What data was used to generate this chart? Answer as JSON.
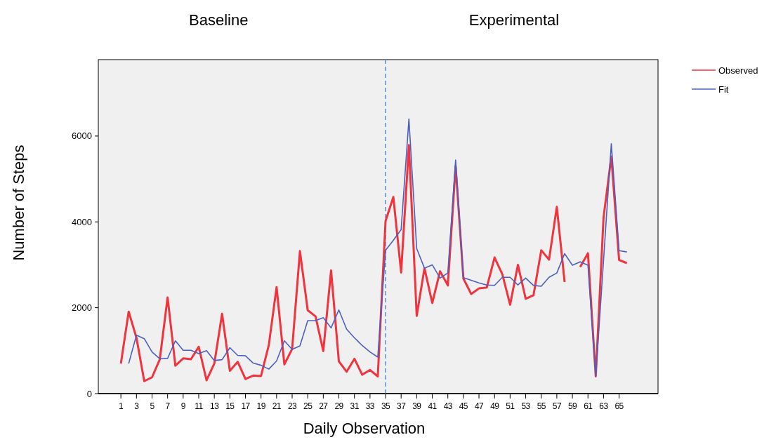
{
  "chart_data": {
    "type": "line",
    "xlabel": "Daily Observation",
    "ylabel": "Number of Steps",
    "annotations": [
      "Baseline",
      "Experimental"
    ],
    "xlim": [
      -1.9,
      70
    ],
    "xticks": [
      1,
      3,
      5,
      7,
      9,
      11,
      13,
      15,
      17,
      19,
      21,
      23,
      25,
      27,
      29,
      31,
      33,
      35,
      37,
      39,
      41,
      43,
      45,
      47,
      49,
      51,
      53,
      55,
      57,
      59,
      61,
      63,
      65
    ],
    "ylim": [
      0,
      7780
    ],
    "yticks": [
      0,
      2000,
      4000,
      6000
    ],
    "ref_lines": [
      {
        "axis": "x",
        "value": 35,
        "color": "#4a7fc1",
        "line_style": "dashed"
      }
    ],
    "legend": "top right",
    "grid": false,
    "marker": "none",
    "line_style": "solid",
    "series": [
      {
        "name": "Observed",
        "color": "#f0333d",
        "x": [
          1,
          2,
          3,
          4,
          5,
          6,
          7,
          8,
          9,
          10,
          11,
          12,
          13,
          14,
          15,
          16,
          17,
          18,
          19,
          20,
          21,
          22,
          23,
          24,
          25,
          26,
          27,
          28,
          29,
          30,
          31,
          32,
          33,
          34,
          35,
          36,
          37,
          38,
          39,
          40,
          41,
          42,
          43,
          44,
          45,
          46,
          47,
          48,
          49,
          50,
          51,
          52,
          53,
          54,
          55,
          56,
          57,
          58,
          59,
          60,
          61,
          62,
          63,
          64,
          65,
          66
        ],
        "values": [
          700,
          1910,
          1300,
          290,
          380,
          800,
          2240,
          650,
          820,
          800,
          1090,
          310,
          700,
          1860,
          530,
          740,
          340,
          420,
          410,
          1130,
          2480,
          680,
          1040,
          3320,
          1940,
          1800,
          990,
          2870,
          750,
          510,
          810,
          440,
          550,
          400,
          4020,
          4580,
          2820,
          5790,
          1810,
          2920,
          2110,
          2850,
          2520,
          5300,
          2680,
          2320,
          2450,
          2470,
          3170,
          2780,
          2070,
          3000,
          2210,
          2290,
          3340,
          3120,
          4350,
          2600,
          null,
          2950,
          3270,
          400,
          4100,
          5520,
          3110,
          3040
        ]
      },
      {
        "name": "Fit",
        "color": "#4b5fbe",
        "x": [
          2,
          3,
          4,
          5,
          6,
          7,
          8,
          9,
          10,
          11,
          12,
          13,
          14,
          15,
          16,
          17,
          18,
          19,
          20,
          21,
          22,
          23,
          24,
          25,
          26,
          27,
          28,
          29,
          30,
          31,
          32,
          33,
          34,
          35,
          36,
          37,
          38,
          39,
          40,
          41,
          42,
          43,
          44,
          45,
          46,
          47,
          48,
          49,
          50,
          51,
          52,
          53,
          54,
          55,
          56,
          57,
          58,
          59,
          60,
          61,
          62,
          63,
          64,
          65,
          66
        ],
        "values": [
          700,
          1360,
          1280,
          970,
          810,
          820,
          1230,
          1010,
          1010,
          930,
          1000,
          770,
          790,
          1070,
          890,
          880,
          710,
          660,
          570,
          760,
          1230,
          1030,
          1110,
          1700,
          1700,
          1770,
          1530,
          1950,
          1500,
          1300,
          1120,
          970,
          850,
          3340,
          3570,
          3820,
          6400,
          3380,
          2920,
          3000,
          2690,
          2810,
          5440,
          2700,
          2640,
          2580,
          2530,
          2520,
          2710,
          2710,
          2530,
          2690,
          2520,
          2500,
          2710,
          2810,
          3260,
          2990,
          3070,
          2990,
          400,
          3100,
          5820,
          3330,
          3300
        ]
      }
    ]
  }
}
